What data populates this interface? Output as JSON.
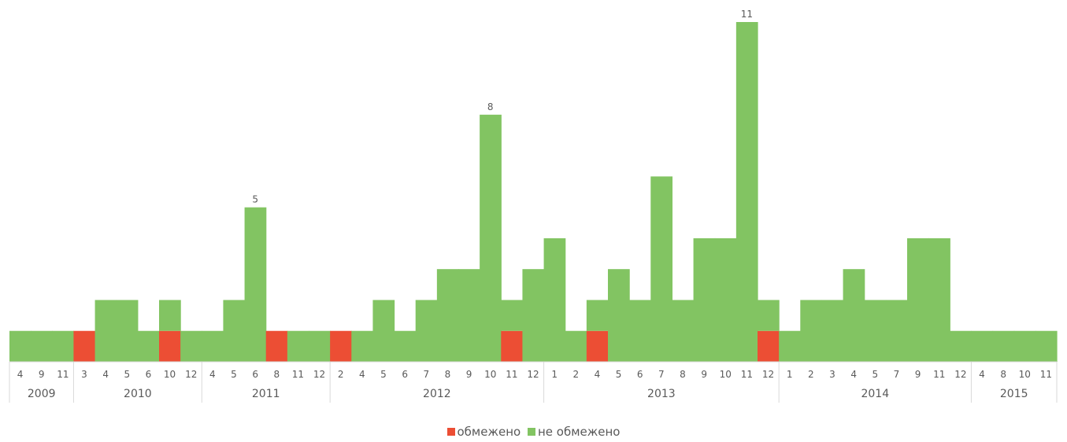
{
  "chart_data": {
    "type": "bar",
    "stacked": true,
    "grid": false,
    "legend": "bottom",
    "title": "",
    "xlabel": "",
    "ylabel": "",
    "ylim": [
      0,
      11
    ],
    "years": [
      {
        "label": "2009",
        "months": [
          "4",
          "9",
          "11"
        ]
      },
      {
        "label": "2010",
        "months": [
          "3",
          "4",
          "5",
          "6",
          "10",
          "12"
        ]
      },
      {
        "label": "2011",
        "months": [
          "4",
          "5",
          "6",
          "8",
          "11",
          "12"
        ]
      },
      {
        "label": "2012",
        "months": [
          "2",
          "4",
          "5",
          "6",
          "7",
          "8",
          "9",
          "10",
          "11",
          "12"
        ]
      },
      {
        "label": "2013",
        "months": [
          "1",
          "2",
          "4",
          "5",
          "6",
          "7",
          "8",
          "9",
          "10",
          "11",
          "12"
        ]
      },
      {
        "label": "2014",
        "months": [
          "1",
          "2",
          "3",
          "4",
          "5",
          "7",
          "9",
          "11",
          "12"
        ]
      },
      {
        "label": "2015",
        "months": [
          "4",
          "8",
          "10",
          "11"
        ]
      }
    ],
    "series": [
      {
        "name": "обмежено",
        "color": "#EC4E34",
        "values": [
          0,
          0,
          0,
          1,
          0,
          0,
          0,
          1,
          0,
          0,
          0,
          0,
          1,
          0,
          0,
          1,
          0,
          0,
          0,
          0,
          0,
          0,
          0,
          1,
          0,
          0,
          0,
          1,
          0,
          0,
          0,
          0,
          0,
          0,
          0,
          1,
          0,
          0,
          0,
          0,
          0,
          0,
          0,
          0,
          0,
          0,
          0,
          0,
          0
        ]
      },
      {
        "name": "не обмежено",
        "color": "#82C462",
        "values": [
          1,
          1,
          1,
          0,
          2,
          2,
          1,
          1,
          1,
          1,
          2,
          5,
          0,
          1,
          1,
          0,
          1,
          2,
          1,
          2,
          3,
          3,
          8,
          1,
          3,
          4,
          1,
          1,
          3,
          2,
          6,
          2,
          4,
          4,
          11,
          1,
          1,
          2,
          2,
          3,
          2,
          2,
          4,
          4,
          1,
          1,
          1,
          1,
          1
        ]
      }
    ],
    "data_labels": [
      {
        "index": 11,
        "text": "5"
      },
      {
        "index": 22,
        "text": "8"
      },
      {
        "index": 34,
        "text": "11"
      }
    ]
  }
}
